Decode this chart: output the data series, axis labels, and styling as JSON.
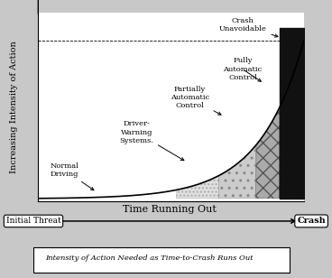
{
  "title": "Intensity of Action Needed as Time-to-Crash Runs Out",
  "ylabel": "Increasing Intensity of Action",
  "xlabel": "Time Running Out",
  "x_left_label": "Initial Threat",
  "x_right_label": "Crash",
  "crash_unavoidable_label": "Crash\nUnavoidable",
  "zone_boundaries": [
    0.0,
    0.52,
    0.68,
    0.82,
    0.91,
    1.0
  ],
  "bg_color": "#f0f0f0",
  "curve_color": "#111111",
  "font_size_labels": 6,
  "font_size_axis": 7,
  "font_size_title": 6
}
